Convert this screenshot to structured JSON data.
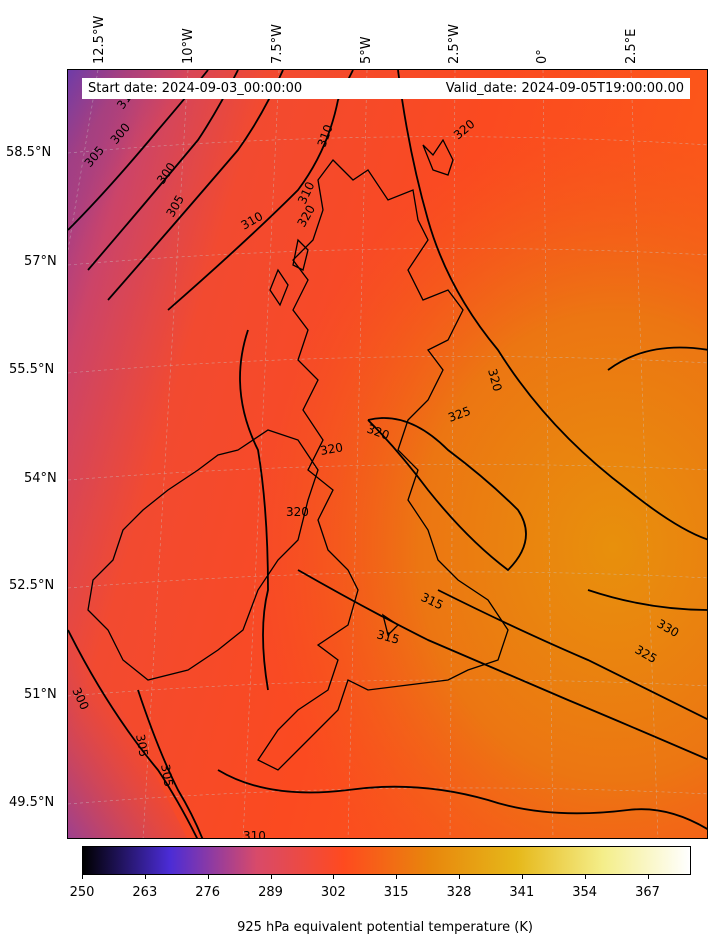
{
  "header": {
    "start_date": "Start date: 2024-09-03_00:00:00",
    "valid_date": "Valid_date: 2024-09-05T19:00:00.00"
  },
  "longitude_labels": [
    "12.5°W",
    "10°W",
    "7.5°W",
    "5°W",
    "2.5°W",
    "0°",
    "2.5°E"
  ],
  "latitude_labels": [
    "58.5°N",
    "57°N",
    "55.5°N",
    "54°N",
    "52.5°N",
    "51°N",
    "49.5°N"
  ],
  "contour_labels": [
    "300",
    "305",
    "310",
    "315",
    "320",
    "325",
    "330"
  ],
  "contour_label_instances": [
    "310",
    "300",
    "305",
    "300",
    "305",
    "310",
    "310",
    "310",
    "320",
    "320",
    "320",
    "325",
    "320",
    "320",
    "315",
    "315",
    "330",
    "325",
    "300",
    "305",
    "305",
    "310",
    "320"
  ],
  "colorbar": {
    "ticks": [
      "250",
      "263",
      "276",
      "289",
      "302",
      "315",
      "328",
      "341",
      "354",
      "367"
    ],
    "range": [
      250,
      376
    ],
    "label": "925 hPa equivalent potential temperature (K)",
    "colormap": [
      "#000000",
      "#4b2cd6",
      "#d84a6a",
      "#ff4a1f",
      "#e8860c",
      "#e6b81a",
      "#f4ee8a",
      "#ffffff"
    ]
  }
}
